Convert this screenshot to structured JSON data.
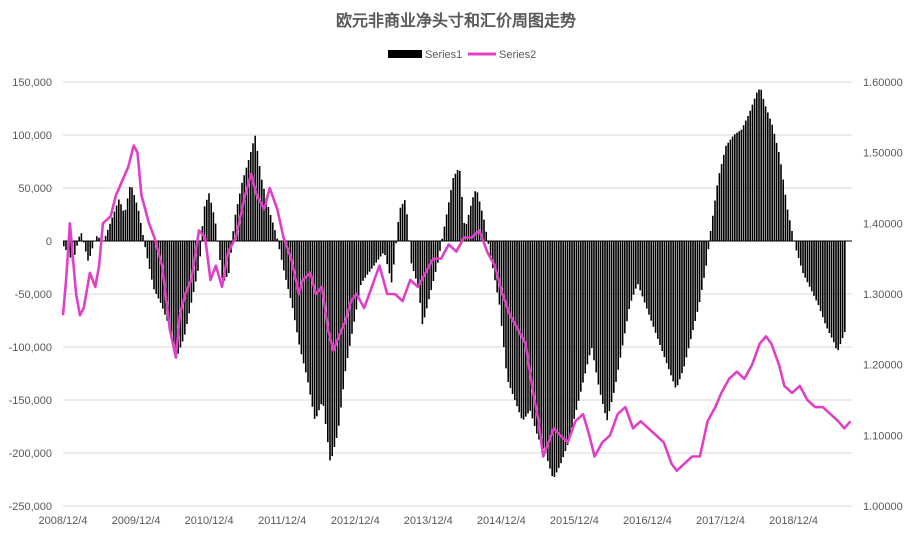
{
  "chart_data": {
    "type": "bar+line",
    "title": "欧元非商业净头寸和汇价周图走势",
    "legend_position": "top-center",
    "grid": true,
    "x_ticks": [
      "2008/12/4",
      "2009/12/4",
      "2010/12/4",
      "2011/12/4",
      "2012/12/4",
      "2013/12/4",
      "2014/12/4",
      "2015/12/4",
      "2016/12/4",
      "2017/12/4",
      "2018/12/4"
    ],
    "y_left": {
      "ylim": [
        -250000,
        150000
      ],
      "ticks": [
        "150,000",
        "100,000",
        "50,000",
        "0",
        "-50,000",
        "-100,000",
        "-150,000",
        "-200,000",
        "-250,000"
      ]
    },
    "y_right": {
      "ylim": [
        1.0,
        1.6
      ],
      "ticks": [
        "1.60000",
        "1.50000",
        "1.40000",
        "1.30000",
        "1.20000",
        "1.10000",
        "1.00000"
      ]
    },
    "series": [
      {
        "name": "Series1",
        "kind": "bar",
        "axis": "left",
        "color": "#000000",
        "points": [
          [
            2008.93,
            -5000
          ],
          [
            2009.05,
            -20000
          ],
          [
            2009.15,
            10000
          ],
          [
            2009.25,
            -20000
          ],
          [
            2009.35,
            5000
          ],
          [
            2009.45,
            0
          ],
          [
            2009.55,
            20000
          ],
          [
            2009.65,
            40000
          ],
          [
            2009.72,
            25000
          ],
          [
            2009.8,
            55000
          ],
          [
            2009.9,
            30000
          ],
          [
            2010.0,
            -10000
          ],
          [
            2010.1,
            -45000
          ],
          [
            2010.2,
            -60000
          ],
          [
            2010.3,
            -80000
          ],
          [
            2010.4,
            -110000
          ],
          [
            2010.5,
            -90000
          ],
          [
            2010.6,
            -55000
          ],
          [
            2010.7,
            -20000
          ],
          [
            2010.75,
            30000
          ],
          [
            2010.82,
            45000
          ],
          [
            2010.9,
            20000
          ],
          [
            2011.0,
            -40000
          ],
          [
            2011.08,
            -30000
          ],
          [
            2011.15,
            20000
          ],
          [
            2011.25,
            55000
          ],
          [
            2011.35,
            80000
          ],
          [
            2011.42,
            100000
          ],
          [
            2011.5,
            60000
          ],
          [
            2011.6,
            30000
          ],
          [
            2011.7,
            5000
          ],
          [
            2011.8,
            -30000
          ],
          [
            2011.9,
            -60000
          ],
          [
            2012.0,
            -100000
          ],
          [
            2012.1,
            -130000
          ],
          [
            2012.2,
            -170000
          ],
          [
            2012.3,
            -150000
          ],
          [
            2012.4,
            -210000
          ],
          [
            2012.5,
            -180000
          ],
          [
            2012.6,
            -120000
          ],
          [
            2012.7,
            -80000
          ],
          [
            2012.8,
            -40000
          ],
          [
            2012.9,
            -30000
          ],
          [
            2013.0,
            -20000
          ],
          [
            2013.1,
            -10000
          ],
          [
            2013.2,
            -40000
          ],
          [
            2013.3,
            30000
          ],
          [
            2013.38,
            40000
          ],
          [
            2013.45,
            -20000
          ],
          [
            2013.55,
            -45000
          ],
          [
            2013.6,
            -80000
          ],
          [
            2013.7,
            -50000
          ],
          [
            2013.8,
            -20000
          ],
          [
            2013.9,
            20000
          ],
          [
            2014.0,
            60000
          ],
          [
            2014.08,
            70000
          ],
          [
            2014.15,
            10000
          ],
          [
            2014.25,
            40000
          ],
          [
            2014.3,
            50000
          ],
          [
            2014.4,
            20000
          ],
          [
            2014.5,
            -20000
          ],
          [
            2014.6,
            -60000
          ],
          [
            2014.7,
            -130000
          ],
          [
            2014.8,
            -150000
          ],
          [
            2014.9,
            -170000
          ],
          [
            2015.0,
            -160000
          ],
          [
            2015.1,
            -185000
          ],
          [
            2015.2,
            -200000
          ],
          [
            2015.3,
            -225000
          ],
          [
            2015.4,
            -210000
          ],
          [
            2015.5,
            -190000
          ],
          [
            2015.6,
            -160000
          ],
          [
            2015.7,
            -130000
          ],
          [
            2015.8,
            -100000
          ],
          [
            2015.9,
            -140000
          ],
          [
            2016.0,
            -170000
          ],
          [
            2016.1,
            -140000
          ],
          [
            2016.2,
            -100000
          ],
          [
            2016.3,
            -60000
          ],
          [
            2016.4,
            -40000
          ],
          [
            2016.5,
            -60000
          ],
          [
            2016.6,
            -80000
          ],
          [
            2016.7,
            -100000
          ],
          [
            2016.8,
            -120000
          ],
          [
            2016.9,
            -140000
          ],
          [
            2017.0,
            -120000
          ],
          [
            2017.1,
            -90000
          ],
          [
            2017.2,
            -60000
          ],
          [
            2017.3,
            -20000
          ],
          [
            2017.35,
            10000
          ],
          [
            2017.45,
            60000
          ],
          [
            2017.55,
            90000
          ],
          [
            2017.65,
            100000
          ],
          [
            2017.75,
            105000
          ],
          [
            2017.85,
            120000
          ],
          [
            2017.95,
            140000
          ],
          [
            2018.0,
            145000
          ],
          [
            2018.05,
            130000
          ],
          [
            2018.15,
            110000
          ],
          [
            2018.25,
            80000
          ],
          [
            2018.35,
            30000
          ],
          [
            2018.45,
            -5000
          ],
          [
            2018.55,
            -30000
          ],
          [
            2018.65,
            -45000
          ],
          [
            2018.75,
            -60000
          ],
          [
            2018.85,
            -80000
          ],
          [
            2018.95,
            -95000
          ],
          [
            2019.0,
            -105000
          ],
          [
            2019.1,
            -85000
          ]
        ]
      },
      {
        "name": "Series2",
        "kind": "line",
        "axis": "right",
        "color": "#e040c8",
        "points": [
          [
            2008.93,
            1.27
          ],
          [
            2008.97,
            1.32
          ],
          [
            2009.02,
            1.4
          ],
          [
            2009.06,
            1.35
          ],
          [
            2009.1,
            1.3
          ],
          [
            2009.15,
            1.27
          ],
          [
            2009.2,
            1.28
          ],
          [
            2009.28,
            1.33
          ],
          [
            2009.35,
            1.31
          ],
          [
            2009.4,
            1.34
          ],
          [
            2009.45,
            1.4
          ],
          [
            2009.55,
            1.41
          ],
          [
            2009.62,
            1.44
          ],
          [
            2009.7,
            1.46
          ],
          [
            2009.78,
            1.48
          ],
          [
            2009.85,
            1.51
          ],
          [
            2009.9,
            1.5
          ],
          [
            2009.95,
            1.44
          ],
          [
            2010.05,
            1.4
          ],
          [
            2010.12,
            1.38
          ],
          [
            2010.22,
            1.34
          ],
          [
            2010.32,
            1.25
          ],
          [
            2010.4,
            1.21
          ],
          [
            2010.45,
            1.27
          ],
          [
            2010.52,
            1.3
          ],
          [
            2010.6,
            1.32
          ],
          [
            2010.7,
            1.39
          ],
          [
            2010.78,
            1.38
          ],
          [
            2010.85,
            1.32
          ],
          [
            2010.92,
            1.34
          ],
          [
            2011.0,
            1.31
          ],
          [
            2011.08,
            1.36
          ],
          [
            2011.18,
            1.38
          ],
          [
            2011.3,
            1.44
          ],
          [
            2011.38,
            1.47
          ],
          [
            2011.45,
            1.44
          ],
          [
            2011.55,
            1.42
          ],
          [
            2011.62,
            1.45
          ],
          [
            2011.72,
            1.42
          ],
          [
            2011.8,
            1.38
          ],
          [
            2011.9,
            1.35
          ],
          [
            2012.0,
            1.3
          ],
          [
            2012.05,
            1.32
          ],
          [
            2012.15,
            1.33
          ],
          [
            2012.22,
            1.3
          ],
          [
            2012.3,
            1.31
          ],
          [
            2012.38,
            1.25
          ],
          [
            2012.45,
            1.22
          ],
          [
            2012.52,
            1.24
          ],
          [
            2012.6,
            1.26
          ],
          [
            2012.68,
            1.29
          ],
          [
            2012.75,
            1.3
          ],
          [
            2012.85,
            1.28
          ],
          [
            2012.95,
            1.31
          ],
          [
            2013.05,
            1.34
          ],
          [
            2013.15,
            1.3
          ],
          [
            2013.25,
            1.3
          ],
          [
            2013.35,
            1.29
          ],
          [
            2013.45,
            1.32
          ],
          [
            2013.55,
            1.31
          ],
          [
            2013.65,
            1.33
          ],
          [
            2013.75,
            1.35
          ],
          [
            2013.85,
            1.35
          ],
          [
            2013.95,
            1.37
          ],
          [
            2014.05,
            1.36
          ],
          [
            2014.15,
            1.38
          ],
          [
            2014.25,
            1.38
          ],
          [
            2014.35,
            1.39
          ],
          [
            2014.45,
            1.36
          ],
          [
            2014.55,
            1.34
          ],
          [
            2014.65,
            1.3
          ],
          [
            2014.75,
            1.27
          ],
          [
            2014.85,
            1.25
          ],
          [
            2014.95,
            1.23
          ],
          [
            2015.05,
            1.16
          ],
          [
            2015.12,
            1.12
          ],
          [
            2015.18,
            1.07
          ],
          [
            2015.25,
            1.09
          ],
          [
            2015.32,
            1.11
          ],
          [
            2015.4,
            1.1
          ],
          [
            2015.5,
            1.09
          ],
          [
            2015.6,
            1.12
          ],
          [
            2015.7,
            1.13
          ],
          [
            2015.78,
            1.1
          ],
          [
            2015.85,
            1.07
          ],
          [
            2015.95,
            1.09
          ],
          [
            2016.05,
            1.1
          ],
          [
            2016.15,
            1.13
          ],
          [
            2016.25,
            1.14
          ],
          [
            2016.35,
            1.11
          ],
          [
            2016.45,
            1.12
          ],
          [
            2016.55,
            1.11
          ],
          [
            2016.65,
            1.1
          ],
          [
            2016.75,
            1.09
          ],
          [
            2016.85,
            1.06
          ],
          [
            2016.92,
            1.05
          ],
          [
            2017.02,
            1.06
          ],
          [
            2017.12,
            1.07
          ],
          [
            2017.22,
            1.07
          ],
          [
            2017.32,
            1.12
          ],
          [
            2017.42,
            1.14
          ],
          [
            2017.5,
            1.16
          ],
          [
            2017.6,
            1.18
          ],
          [
            2017.7,
            1.19
          ],
          [
            2017.8,
            1.18
          ],
          [
            2017.9,
            1.2
          ],
          [
            2018.0,
            1.23
          ],
          [
            2018.08,
            1.24
          ],
          [
            2018.15,
            1.23
          ],
          [
            2018.25,
            1.2
          ],
          [
            2018.32,
            1.17
          ],
          [
            2018.42,
            1.16
          ],
          [
            2018.52,
            1.17
          ],
          [
            2018.62,
            1.15
          ],
          [
            2018.72,
            1.14
          ],
          [
            2018.82,
            1.14
          ],
          [
            2018.92,
            1.13
          ],
          [
            2019.02,
            1.12
          ],
          [
            2019.1,
            1.11
          ],
          [
            2019.18,
            1.12
          ]
        ]
      }
    ]
  }
}
